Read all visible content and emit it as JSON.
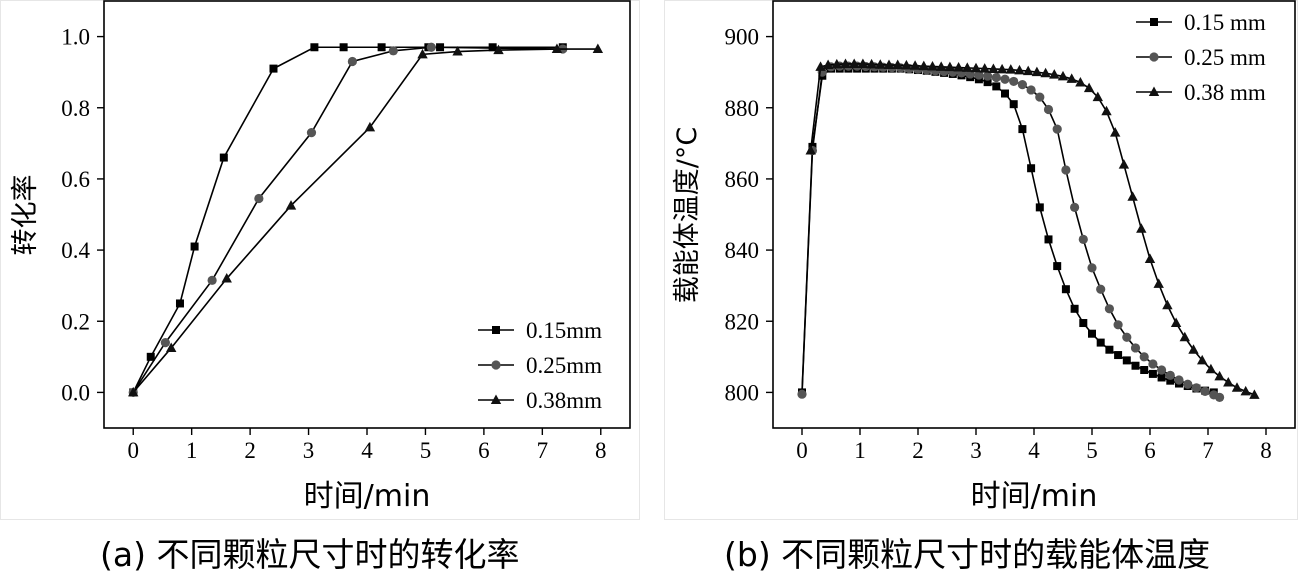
{
  "chart_data": [
    {
      "type": "line",
      "ylabel": "转化率",
      "xlabel": "时间/min",
      "xlim": [
        -0.5,
        8.5
      ],
      "ylim": [
        -0.1,
        1.1
      ],
      "xticks": [
        0,
        1,
        2,
        3,
        4,
        5,
        6,
        7,
        8
      ],
      "yticks": [
        0.0,
        0.2,
        0.4,
        0.6,
        0.8,
        1.0
      ],
      "ytick_labels": [
        "0.0",
        "0.2",
        "0.4",
        "0.6",
        "0.8",
        "1.0"
      ],
      "legend_position": "bottom-right",
      "caption": "(a) 不同颗粒尺寸时的转化率",
      "series": [
        {
          "name": "0.15mm",
          "marker": "square",
          "x": [
            0,
            0.3,
            0.8,
            1.05,
            1.55,
            2.4,
            3.1,
            3.6,
            4.25,
            5.05,
            5.25,
            6.15,
            7.35
          ],
          "y": [
            0,
            0.1,
            0.25,
            0.41,
            0.66,
            0.91,
            0.97,
            0.97,
            0.97,
            0.97,
            0.97,
            0.97,
            0.97
          ]
        },
        {
          "name": "0.25mm",
          "marker": "circle",
          "x": [
            0,
            0.55,
            1.35,
            2.15,
            3.05,
            3.75,
            4.45,
            5.1,
            7.35
          ],
          "y": [
            0,
            0.14,
            0.315,
            0.545,
            0.73,
            0.93,
            0.96,
            0.97,
            0.965
          ]
        },
        {
          "name": "0.38mm",
          "marker": "triangle",
          "x": [
            0,
            0.65,
            1.6,
            2.7,
            4.05,
            4.95,
            5.55,
            6.25,
            7.25,
            7.95
          ],
          "y": [
            0,
            0.125,
            0.32,
            0.525,
            0.745,
            0.95,
            0.958,
            0.962,
            0.965,
            0.965
          ]
        }
      ]
    },
    {
      "type": "line",
      "ylabel": "载能体温度/°C",
      "xlabel": "时间/min",
      "xlim": [
        -0.5,
        8.5
      ],
      "ylim": [
        790,
        910
      ],
      "xticks": [
        0,
        1,
        2,
        3,
        4,
        5,
        6,
        7,
        8
      ],
      "yticks": [
        800,
        820,
        840,
        860,
        880,
        900
      ],
      "ytick_labels": [
        "800",
        "820",
        "840",
        "860",
        "880",
        "900"
      ],
      "legend_position": "top-right",
      "caption": "(b) 不同颗粒尺寸时的载能体温度",
      "series": [
        {
          "name": "0.15 mm",
          "marker": "square",
          "x": [
            0,
            0.18,
            0.35,
            0.5,
            0.65,
            0.8,
            0.95,
            1.1,
            1.25,
            1.4,
            1.55,
            1.7,
            1.85,
            2.0,
            2.15,
            2.3,
            2.45,
            2.6,
            2.75,
            2.9,
            3.05,
            3.2,
            3.35,
            3.5,
            3.65,
            3.8,
            3.95,
            4.1,
            4.25,
            4.4,
            4.55,
            4.7,
            4.85,
            5.0,
            5.15,
            5.3,
            5.45,
            5.6,
            5.75,
            5.9,
            6.05,
            6.2,
            6.35,
            6.5,
            6.65,
            6.8,
            6.95,
            7.1
          ],
          "y": [
            800,
            869,
            889,
            891,
            891,
            891,
            891,
            891,
            891,
            891,
            891,
            891,
            890.8,
            890.6,
            890.4,
            890.1,
            889.8,
            889.5,
            889.1,
            888.6,
            888,
            887.2,
            886,
            884,
            881,
            874,
            863,
            852,
            843,
            835.5,
            829,
            823.5,
            819.5,
            816.5,
            814,
            812,
            810.5,
            809,
            807.5,
            806.3,
            805.2,
            804.2,
            803.3,
            802.5,
            801.8,
            801.1,
            800.5,
            800
          ]
        },
        {
          "name": "0.25 mm",
          "marker": "circle",
          "x": [
            0,
            0.18,
            0.35,
            0.5,
            0.65,
            0.8,
            0.95,
            1.1,
            1.25,
            1.4,
            1.55,
            1.7,
            1.85,
            2.0,
            2.15,
            2.3,
            2.45,
            2.6,
            2.75,
            2.9,
            3.05,
            3.2,
            3.35,
            3.5,
            3.65,
            3.8,
            3.95,
            4.1,
            4.25,
            4.4,
            4.55,
            4.7,
            4.85,
            5.0,
            5.15,
            5.3,
            5.45,
            5.6,
            5.75,
            5.9,
            6.05,
            6.2,
            6.35,
            6.5,
            6.65,
            6.8,
            6.95,
            7.1,
            7.2
          ],
          "y": [
            799.5,
            868,
            890,
            891.5,
            891.7,
            891.7,
            891.7,
            891.6,
            891.5,
            891.4,
            891.3,
            891.2,
            891,
            890.8,
            890.6,
            890.4,
            890.2,
            890,
            889.8,
            889.5,
            889.2,
            888.9,
            888.5,
            888,
            887.4,
            886.5,
            885,
            883,
            879.5,
            874,
            862.5,
            852,
            843,
            835,
            829,
            823.5,
            819,
            815.5,
            812.5,
            810,
            808,
            806.3,
            804.8,
            803.5,
            802.3,
            801.3,
            800.3,
            799.3,
            798.6
          ]
        },
        {
          "name": "0.38 mm",
          "marker": "triangle",
          "x": [
            0.15,
            0.32,
            0.45,
            0.6,
            0.75,
            0.9,
            1.05,
            1.2,
            1.35,
            1.5,
            1.65,
            1.8,
            1.95,
            2.1,
            2.25,
            2.4,
            2.55,
            2.7,
            2.85,
            3.0,
            3.15,
            3.3,
            3.45,
            3.6,
            3.75,
            3.9,
            4.05,
            4.2,
            4.35,
            4.5,
            4.65,
            4.8,
            4.95,
            5.1,
            5.25,
            5.4,
            5.55,
            5.7,
            5.85,
            6.0,
            6.15,
            6.3,
            6.45,
            6.6,
            6.75,
            6.9,
            7.05,
            7.2,
            7.35,
            7.5,
            7.65,
            7.8
          ],
          "y": [
            868,
            891.5,
            892,
            892.2,
            892.3,
            892.3,
            892.3,
            892.2,
            892.1,
            892,
            892,
            891.9,
            891.8,
            891.7,
            891.6,
            891.5,
            891.4,
            891.3,
            891.2,
            891.1,
            891,
            890.9,
            890.8,
            890.7,
            890.5,
            890.3,
            890,
            889.7,
            889.3,
            888.8,
            888.1,
            887.1,
            885.5,
            883,
            879,
            873,
            864,
            855,
            846,
            837.5,
            830.5,
            824.5,
            819.5,
            815.5,
            812,
            809,
            806.5,
            804.5,
            802.8,
            801.3,
            800.3,
            799.3
          ]
        }
      ]
    }
  ]
}
